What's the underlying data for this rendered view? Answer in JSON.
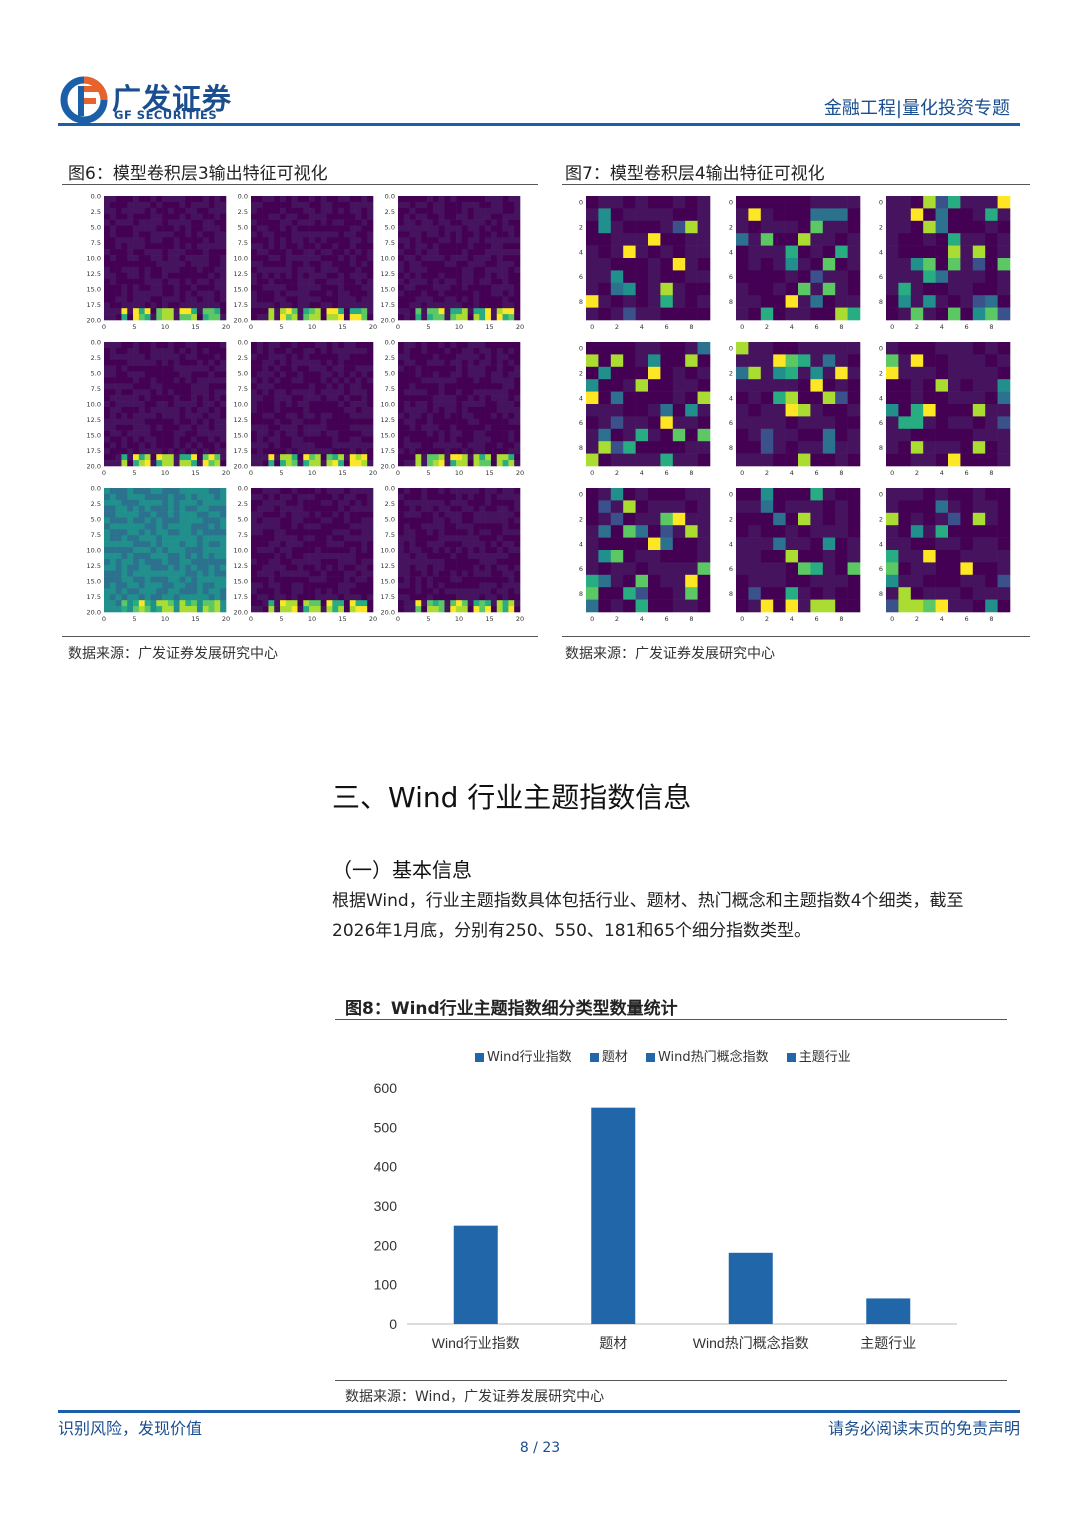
{
  "header": {
    "brand_cn": "广发证券",
    "brand_en": "GF SECURITIES",
    "right_text": "金融工程|量化投资专题"
  },
  "figure6": {
    "title": "图6：模型卷积层3输出特征可视化",
    "source": "数据来源：广发证券发展研究中心",
    "yticks": [
      "0.0",
      "2.5",
      "5.0",
      "7.5",
      "10.0",
      "12.5",
      "15.0",
      "17.5",
      "20.0"
    ],
    "xticks": [
      "0",
      "5",
      "10",
      "15",
      "20"
    ]
  },
  "figure7": {
    "title": "图7：模型卷积层4输出特征可视化",
    "source": "数据来源：广发证券发展研究中心",
    "yticks": [
      "0",
      "2",
      "4",
      "6",
      "8"
    ],
    "xticks": [
      "0",
      "2",
      "4",
      "6",
      "8"
    ]
  },
  "section": {
    "title": "三、Wind 行业主题指数信息",
    "subtitle": "（一）基本信息",
    "para_line1": "根据Wind，行业主题指数具体包括行业、题材、热门概念和主题指数4个细类，截至",
    "para_line2": "2026年1月底，分别有250、550、181和65个细分指数类型。"
  },
  "figure8": {
    "title": "图8：Wind行业主题指数细分类型数量统计",
    "source": "数据来源：Wind，广发证券发展研究中心"
  },
  "chart_data": {
    "type": "bar",
    "categories": [
      "Wind行业指数",
      "题材",
      "Wind热门概念指数",
      "主题行业"
    ],
    "values": [
      250,
      550,
      181,
      65
    ],
    "legend": [
      "Wind行业指数",
      "题材",
      "Wind热门概念指数",
      "主题行业"
    ],
    "legend_position": "top",
    "ylim": [
      0,
      600
    ],
    "yticks": [
      0,
      100,
      200,
      300,
      400,
      500,
      600
    ],
    "bar_color": "#2066a8",
    "grid": false
  },
  "footer": {
    "left": "识别风险，发现价值",
    "right": "请务必阅读末页的免责声明",
    "page": "8 / 23"
  }
}
